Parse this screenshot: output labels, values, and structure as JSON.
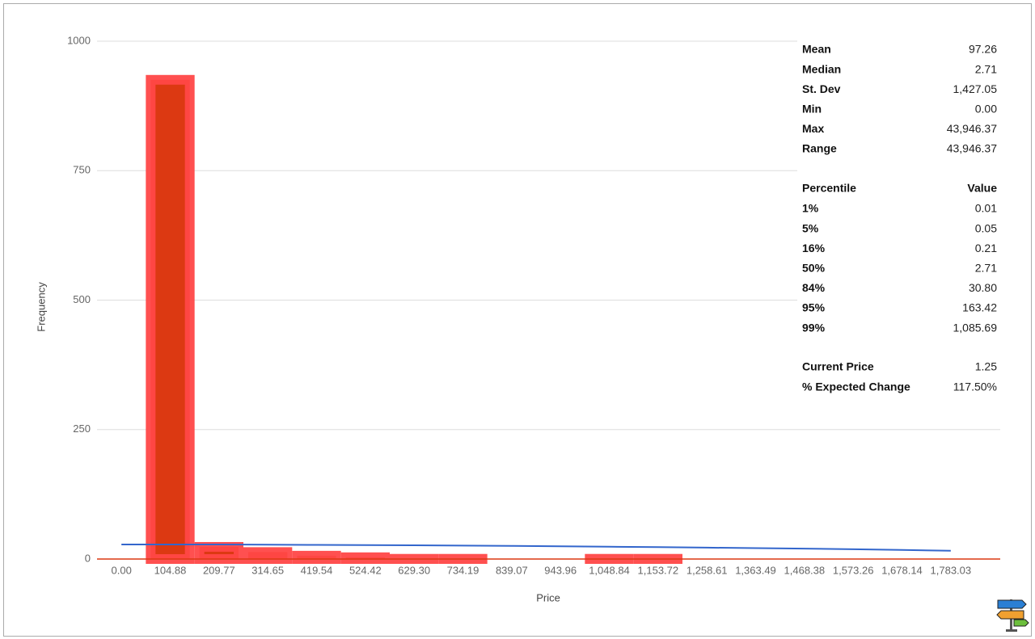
{
  "chart_data": {
    "type": "bar",
    "categories": [
      "0.00",
      "104.88",
      "209.77",
      "314.65",
      "419.54",
      "524.42",
      "629.30",
      "734.19",
      "839.07",
      "943.96",
      "1,048.84",
      "1,153.72",
      "1,258.61",
      "1,363.49",
      "1,468.38",
      "1,573.26",
      "1,678.14",
      "1,783.03"
    ],
    "series": [
      {
        "type": "bar",
        "color": "#dc3912",
        "values": [
          0,
          927,
          25,
          15,
          8,
          5,
          2,
          2,
          1,
          1,
          2,
          2,
          1,
          1,
          1,
          1,
          1,
          0
        ]
      },
      {
        "type": "line",
        "color": "#3366cc",
        "values": [
          28,
          28,
          28,
          27.7,
          27.3,
          27,
          26.5,
          26,
          25.3,
          24.6,
          23.8,
          23,
          22,
          21,
          20,
          19,
          17.5,
          16
        ]
      }
    ],
    "x_label": "Price",
    "y_label": "Frequency",
    "ylim": [
      0,
      1000
    ],
    "yticks": [
      0,
      250,
      500,
      750,
      1000
    ],
    "grid": true
  },
  "stats": {
    "summary": [
      [
        "Mean",
        "97.26"
      ],
      [
        "Median",
        "2.71"
      ],
      [
        "St. Dev",
        "1,427.05"
      ],
      [
        "Min",
        "0.00"
      ],
      [
        "Max",
        "43,946.37"
      ],
      [
        "Range",
        "43,946.37"
      ]
    ],
    "percentile_header": [
      "Percentile",
      "Value"
    ],
    "percentiles": [
      [
        "1%",
        "0.01"
      ],
      [
        "5%",
        "0.05"
      ],
      [
        "16%",
        "0.21"
      ],
      [
        "50%",
        "2.71"
      ],
      [
        "84%",
        "30.80"
      ],
      [
        "95%",
        "163.42"
      ],
      [
        "99%",
        "1,085.69"
      ]
    ],
    "current": [
      [
        "Current Price",
        "1.25"
      ],
      [
        "% Expected Change",
        "117.50%"
      ]
    ]
  }
}
